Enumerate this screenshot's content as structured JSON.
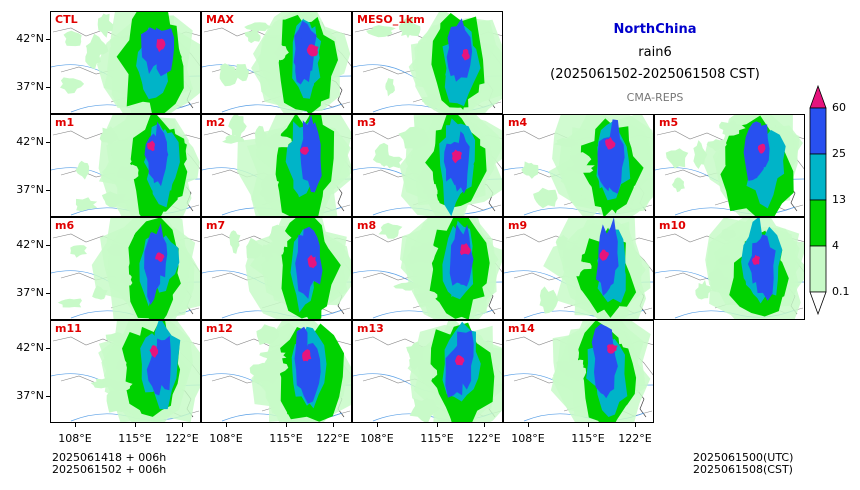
{
  "header": {
    "region": "NorthChina",
    "variable": "rain6",
    "period": "(2025061502-2025061508 CST)",
    "system": "CMA-REPS"
  },
  "panels": [
    "CTL",
    "MAX",
    "MESO_1km",
    "m1",
    "m2",
    "m3",
    "m4",
    "m5",
    "m6",
    "m7",
    "m8",
    "m9",
    "m10",
    "m11",
    "m12",
    "m13",
    "m14"
  ],
  "axes": {
    "lat_labels": [
      "42°N",
      "37°N"
    ],
    "lon_labels": [
      "108°E",
      "115°E",
      "122°E"
    ]
  },
  "colorbar": {
    "levels": [
      "0.1",
      "4",
      "13",
      "25",
      "60"
    ],
    "colors": [
      "#c8fac8",
      "#00d200",
      "#00b4c8",
      "#2850f0",
      "#e6147d"
    ]
  },
  "footer": {
    "init_line1": "2025061418  +  006h",
    "init_line2": "2025061502  +  006h",
    "valid_utc": "2025061500(UTC)",
    "valid_cst": "2025061508(CST)"
  }
}
